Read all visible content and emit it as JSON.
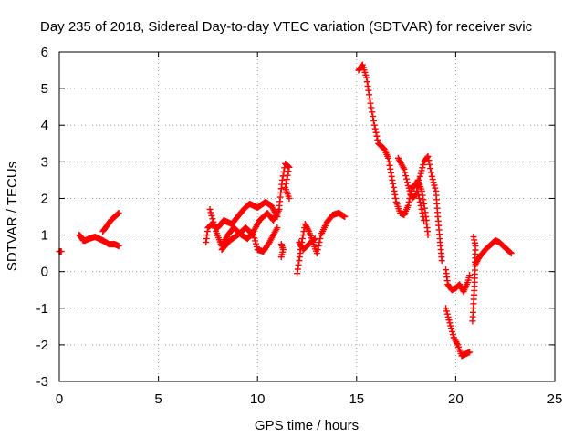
{
  "chart_data": {
    "type": "scatter",
    "title": "Day 235 of 2018, Sidereal Day-to-day VTEC variation (SDTVAR) for receiver svic",
    "xlabel": "GPS time / hours",
    "ylabel": "SDTVAR / TECUs",
    "xlim": [
      0,
      25
    ],
    "ylim": [
      -3,
      6
    ],
    "xticks": [
      "0",
      "5",
      "10",
      "15",
      "20",
      "25"
    ],
    "yticks": [
      "-3",
      "-2",
      "-1",
      "0",
      "1",
      "2",
      "3",
      "4",
      "5",
      "6"
    ],
    "grid": true,
    "marker": "plus",
    "color": "#ff0000",
    "series": [
      {
        "name": "SDTVAR",
        "segments": [
          [
            [
              0.0,
              0.55
            ],
            [
              0.1,
              0.55
            ]
          ],
          [
            [
              1.0,
              1.0
            ],
            [
              1.1,
              0.95
            ],
            [
              1.2,
              0.85
            ],
            [
              1.3,
              0.85
            ],
            [
              1.5,
              0.9
            ],
            [
              1.8,
              0.95
            ],
            [
              2.0,
              0.9
            ],
            [
              2.2,
              0.85
            ],
            [
              2.5,
              0.75
            ],
            [
              2.8,
              0.75
            ],
            [
              3.0,
              0.7
            ]
          ],
          [
            [
              2.2,
              1.1
            ],
            [
              2.4,
              1.25
            ],
            [
              2.6,
              1.4
            ],
            [
              2.8,
              1.5
            ],
            [
              3.0,
              1.6
            ]
          ],
          [
            [
              7.4,
              0.8
            ],
            [
              7.5,
              1.2
            ],
            [
              7.7,
              1.3
            ],
            [
              8.0,
              1.2
            ],
            [
              8.3,
              1.4
            ],
            [
              8.7,
              1.3
            ],
            [
              9.0,
              1.5
            ],
            [
              9.3,
              1.7
            ],
            [
              9.6,
              1.85
            ],
            [
              10.0,
              1.75
            ],
            [
              10.4,
              1.9
            ],
            [
              10.7,
              1.8
            ],
            [
              11.0,
              1.5
            ]
          ],
          [
            [
              7.6,
              1.7
            ],
            [
              7.9,
              1.1
            ],
            [
              8.2,
              0.7
            ],
            [
              8.5,
              1.0
            ],
            [
              8.8,
              1.2
            ],
            [
              9.2,
              1.0
            ],
            [
              9.5,
              0.9
            ],
            [
              9.8,
              1.1
            ],
            [
              10.1,
              1.4
            ],
            [
              10.5,
              1.6
            ],
            [
              10.8,
              1.4
            ],
            [
              11.1,
              1.7
            ]
          ],
          [
            [
              8.2,
              0.6
            ],
            [
              8.6,
              0.85
            ],
            [
              9.0,
              1.0
            ],
            [
              9.4,
              1.2
            ],
            [
              9.8,
              1.0
            ],
            [
              10.0,
              0.6
            ],
            [
              10.3,
              0.55
            ],
            [
              10.6,
              0.8
            ],
            [
              11.0,
              1.2
            ]
          ],
          [
            [
              11.1,
              1.8
            ],
            [
              11.25,
              2.5
            ],
            [
              11.4,
              2.95
            ],
            [
              11.6,
              2.85
            ],
            [
              11.4,
              2.3
            ],
            [
              11.6,
              2.0
            ]
          ],
          [
            [
              11.2,
              0.75
            ],
            [
              11.3,
              0.6
            ],
            [
              11.2,
              0.4
            ]
          ],
          [
            [
              12.0,
              -0.05
            ],
            [
              12.1,
              0.3
            ],
            [
              12.2,
              0.7
            ],
            [
              12.4,
              1.3
            ],
            [
              12.6,
              1.1
            ],
            [
              12.8,
              0.8
            ],
            [
              13.0,
              0.5
            ],
            [
              13.2,
              1.0
            ],
            [
              13.5,
              1.35
            ],
            [
              13.8,
              1.55
            ],
            [
              14.1,
              1.6
            ],
            [
              14.4,
              1.5
            ]
          ],
          [
            [
              12.1,
              0.8
            ],
            [
              12.3,
              0.6
            ],
            [
              12.6,
              0.75
            ],
            [
              12.9,
              0.9
            ]
          ],
          [
            [
              15.1,
              5.5
            ],
            [
              15.3,
              5.65
            ],
            [
              15.5,
              5.3
            ],
            [
              15.7,
              4.6
            ],
            [
              15.9,
              4.0
            ],
            [
              16.1,
              3.5
            ],
            [
              16.4,
              3.35
            ],
            [
              16.6,
              3.1
            ],
            [
              16.8,
              2.5
            ],
            [
              17.0,
              1.9
            ],
            [
              17.2,
              1.6
            ],
            [
              17.4,
              1.55
            ],
            [
              17.6,
              1.8
            ],
            [
              17.8,
              2.3
            ],
            [
              18.0,
              2.4
            ],
            [
              18.2,
              1.9
            ],
            [
              18.4,
              1.4
            ]
          ],
          [
            [
              17.1,
              3.1
            ],
            [
              17.4,
              2.8
            ],
            [
              17.6,
              2.35
            ],
            [
              17.8,
              2.0
            ],
            [
              18.0,
              2.1
            ],
            [
              18.2,
              2.6
            ],
            [
              18.4,
              3.0
            ],
            [
              18.6,
              3.15
            ],
            [
              18.8,
              2.6
            ],
            [
              19.0,
              2.2
            ],
            [
              19.1,
              1.5
            ],
            [
              19.2,
              0.9
            ],
            [
              19.3,
              0.3
            ]
          ],
          [
            [
              17.9,
              2.3
            ],
            [
              18.1,
              2.5
            ],
            [
              18.3,
              2.2
            ],
            [
              18.5,
              1.5
            ],
            [
              18.6,
              1.0
            ]
          ],
          [
            [
              19.5,
              0.05
            ],
            [
              19.6,
              -0.35
            ],
            [
              19.8,
              -0.5
            ],
            [
              20.0,
              -0.45
            ],
            [
              20.2,
              -0.35
            ],
            [
              20.4,
              -0.55
            ],
            [
              20.6,
              -0.3
            ],
            [
              20.7,
              -0.1
            ]
          ],
          [
            [
              19.5,
              -1.0
            ],
            [
              19.7,
              -1.4
            ],
            [
              19.9,
              -1.8
            ],
            [
              20.1,
              -2.0
            ],
            [
              20.3,
              -2.3
            ],
            [
              20.5,
              -2.25
            ],
            [
              20.7,
              -2.2
            ]
          ],
          [
            [
              20.9,
              0.95
            ],
            [
              21.0,
              0.7
            ],
            [
              20.95,
              -0.4
            ],
            [
              20.85,
              -1.35
            ]
          ],
          [
            [
              21.0,
              0.2
            ],
            [
              21.2,
              0.4
            ],
            [
              21.5,
              0.6
            ],
            [
              21.8,
              0.75
            ],
            [
              22.0,
              0.85
            ],
            [
              22.2,
              0.8
            ],
            [
              22.5,
              0.65
            ],
            [
              22.8,
              0.5
            ]
          ]
        ]
      }
    ]
  }
}
